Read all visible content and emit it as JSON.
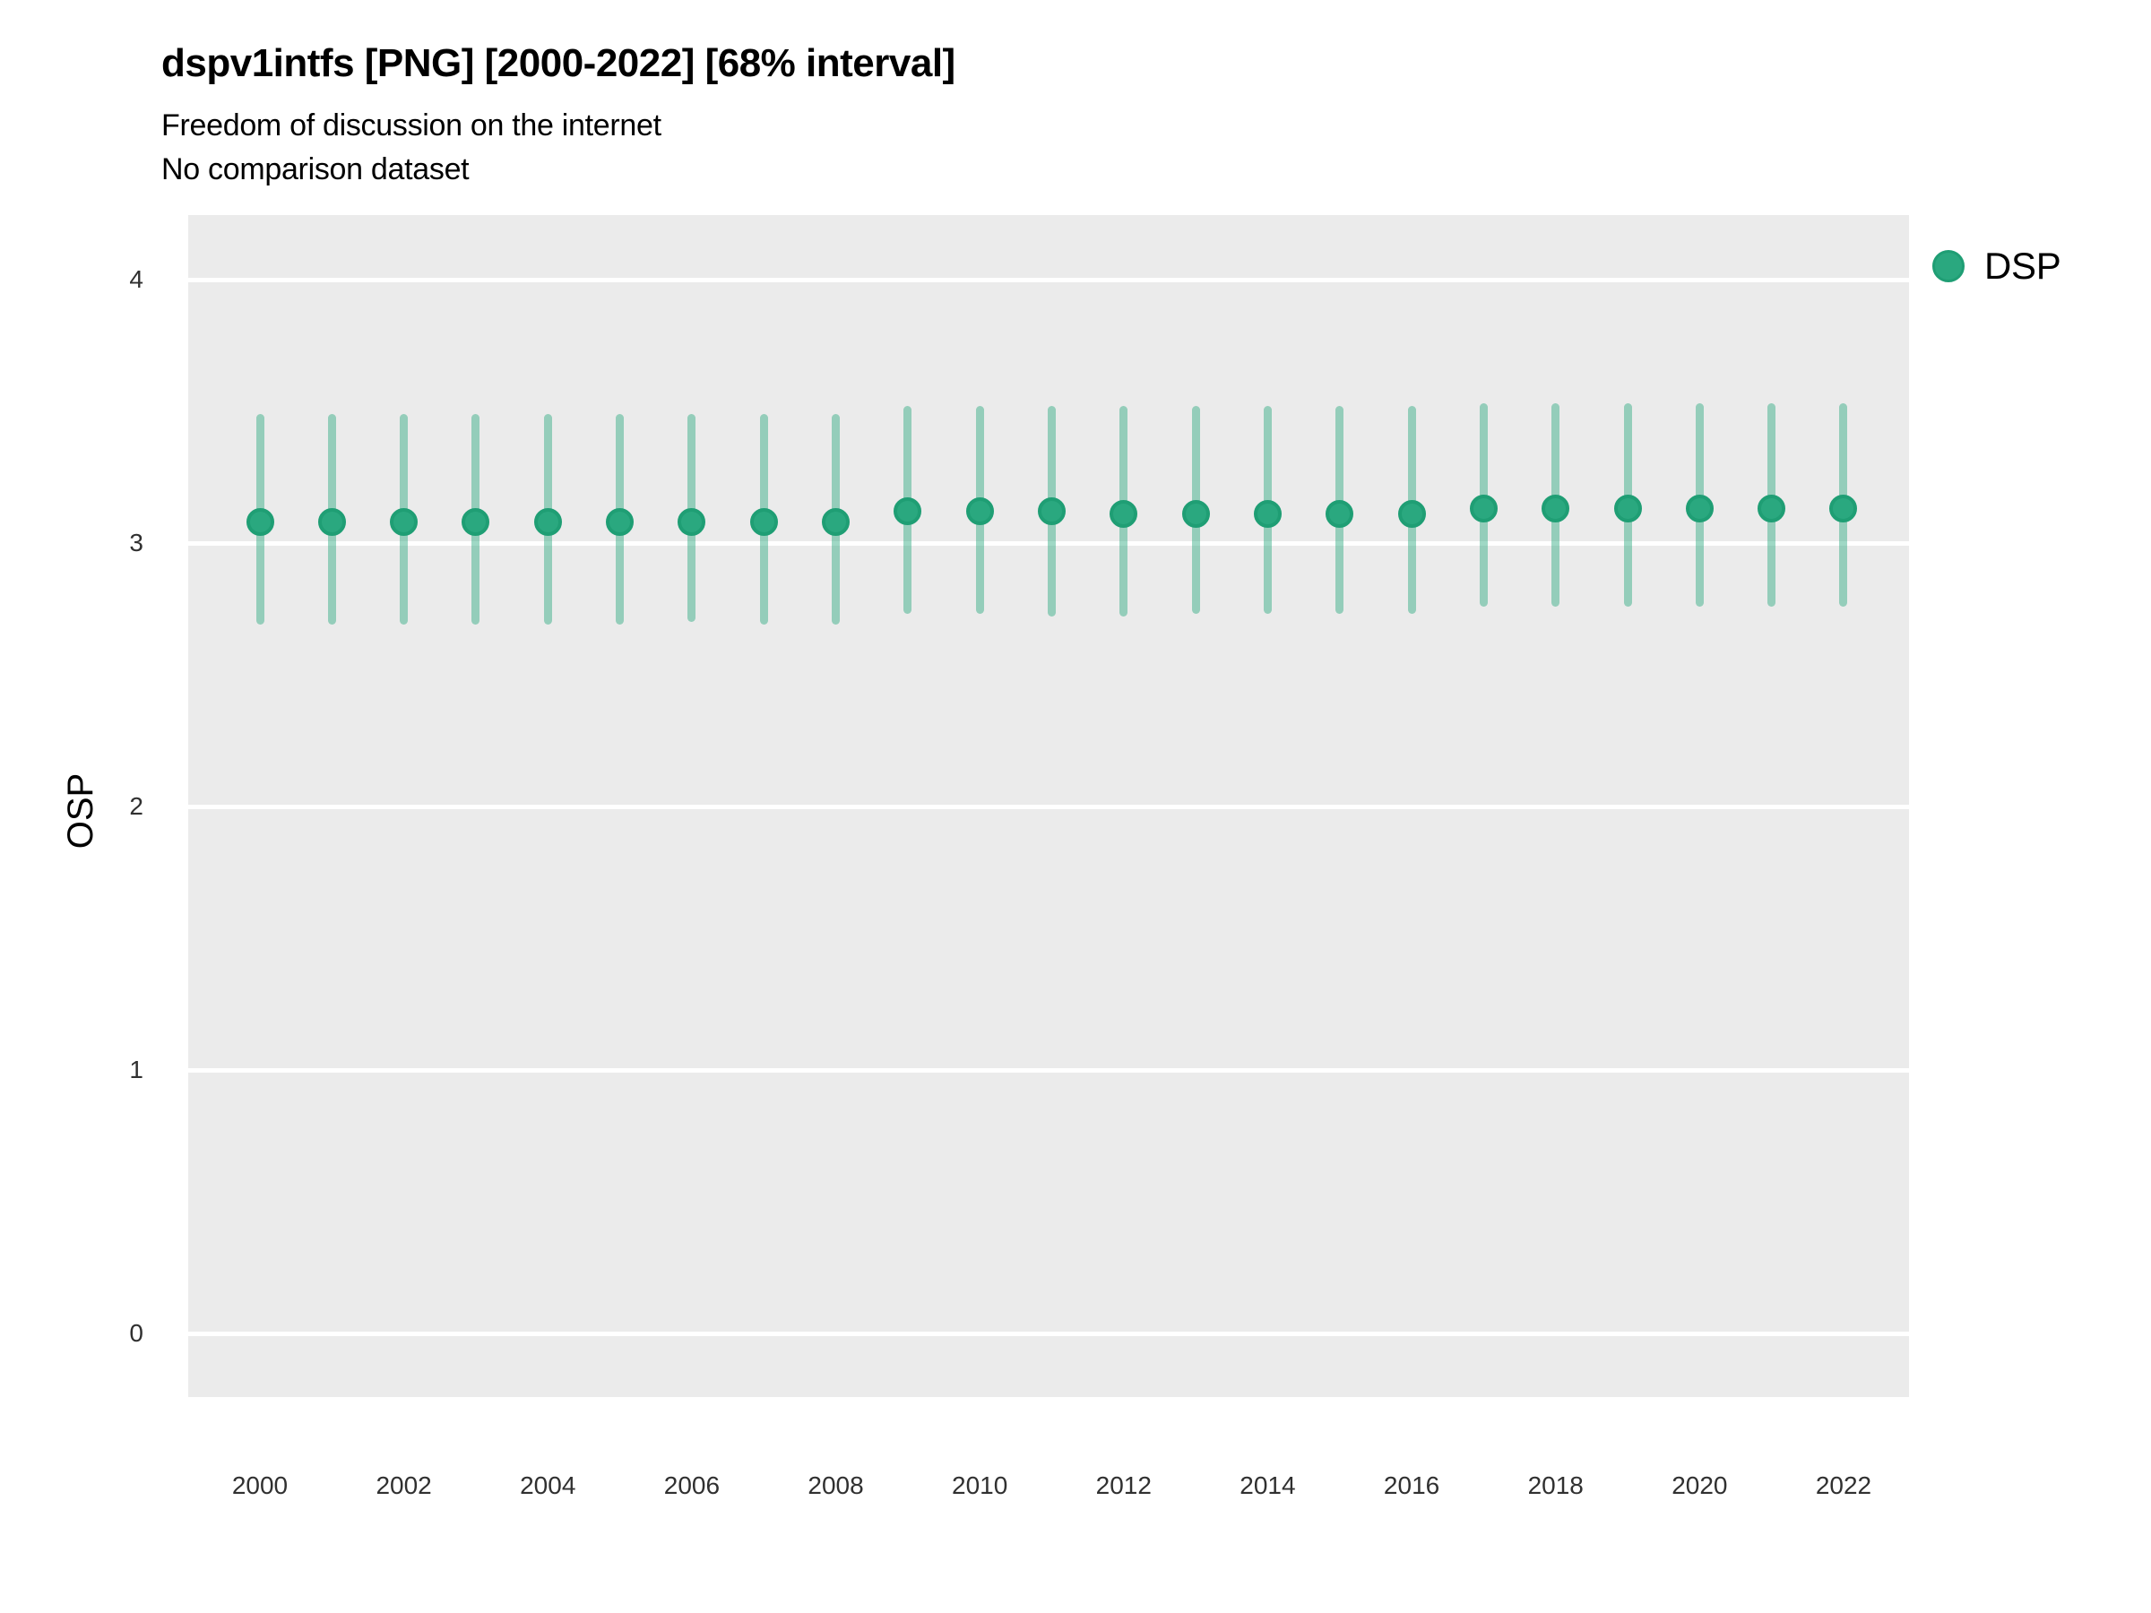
{
  "header": {
    "title": "dspv1intfs [PNG] [2000-2022] [68% interval]",
    "subtitle1": "Freedom of discussion on the internet",
    "subtitle2": "No comparison dataset"
  },
  "legend": {
    "label": "DSP",
    "position": "right"
  },
  "colors": {
    "point_fill": "#2aa87f",
    "point_stroke": "#1f9e74",
    "interval_bar": "rgba(42, 168, 127, 0.45)",
    "panel_background": "#ebebeb",
    "gridline": "#ffffff",
    "tick_text": "#303030",
    "title_text": "#000000"
  },
  "chart_data": {
    "type": "scatter",
    "subtype": "point-estimate-with-68pct-interval",
    "title": "dspv1intfs [PNG] [2000-2022] [68% interval]",
    "subtitle": "Freedom of discussion on the internet",
    "note": "No comparison dataset",
    "xlabel": "",
    "ylabel": "OSP",
    "xlim": [
      1999,
      2023
    ],
    "ylim": [
      -0.24,
      4.25
    ],
    "grid": "horizontal-major-only",
    "legend_position": "right",
    "xticks": [
      2000,
      2002,
      2004,
      2006,
      2008,
      2010,
      2012,
      2014,
      2016,
      2018,
      2020,
      2022
    ],
    "yticks": [
      0,
      1,
      2,
      3,
      4
    ],
    "series": [
      {
        "name": "DSP",
        "points": [
          {
            "year": 2000,
            "est": 3.08,
            "lo": 2.69,
            "hi": 3.49
          },
          {
            "year": 2001,
            "est": 3.08,
            "lo": 2.69,
            "hi": 3.49
          },
          {
            "year": 2002,
            "est": 3.08,
            "lo": 2.69,
            "hi": 3.49
          },
          {
            "year": 2003,
            "est": 3.08,
            "lo": 2.69,
            "hi": 3.49
          },
          {
            "year": 2004,
            "est": 3.08,
            "lo": 2.69,
            "hi": 3.49
          },
          {
            "year": 2005,
            "est": 3.08,
            "lo": 2.69,
            "hi": 3.49
          },
          {
            "year": 2006,
            "est": 3.08,
            "lo": 2.7,
            "hi": 3.49
          },
          {
            "year": 2007,
            "est": 3.08,
            "lo": 2.69,
            "hi": 3.49
          },
          {
            "year": 2008,
            "est": 3.08,
            "lo": 2.69,
            "hi": 3.49
          },
          {
            "year": 2009,
            "est": 3.12,
            "lo": 2.73,
            "hi": 3.52
          },
          {
            "year": 2010,
            "est": 3.12,
            "lo": 2.73,
            "hi": 3.52
          },
          {
            "year": 2011,
            "est": 3.12,
            "lo": 2.72,
            "hi": 3.52
          },
          {
            "year": 2012,
            "est": 3.11,
            "lo": 2.72,
            "hi": 3.52
          },
          {
            "year": 2013,
            "est": 3.11,
            "lo": 2.73,
            "hi": 3.52
          },
          {
            "year": 2014,
            "est": 3.11,
            "lo": 2.73,
            "hi": 3.52
          },
          {
            "year": 2015,
            "est": 3.11,
            "lo": 2.73,
            "hi": 3.52
          },
          {
            "year": 2016,
            "est": 3.11,
            "lo": 2.73,
            "hi": 3.52
          },
          {
            "year": 2017,
            "est": 3.13,
            "lo": 2.76,
            "hi": 3.53
          },
          {
            "year": 2018,
            "est": 3.13,
            "lo": 2.76,
            "hi": 3.53
          },
          {
            "year": 2019,
            "est": 3.13,
            "lo": 2.76,
            "hi": 3.53
          },
          {
            "year": 2020,
            "est": 3.13,
            "lo": 2.76,
            "hi": 3.53
          },
          {
            "year": 2021,
            "est": 3.13,
            "lo": 2.76,
            "hi": 3.53
          },
          {
            "year": 2022,
            "est": 3.13,
            "lo": 2.76,
            "hi": 3.53
          }
        ]
      }
    ]
  }
}
